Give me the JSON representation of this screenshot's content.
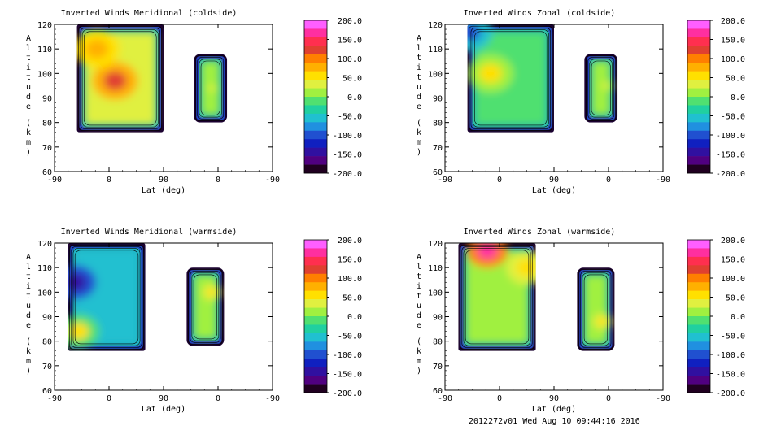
{
  "colorbar": {
    "ticks": [
      "200.0",
      "150.0",
      "100.0",
      "50.0",
      "0.0",
      "-50.0",
      "-100.0",
      "-150.0",
      "-200.0"
    ],
    "colors": [
      "#ff5fff",
      "#ff2fa0",
      "#ff2f4f",
      "#e04030",
      "#ff7f00",
      "#ffb000",
      "#ffe000",
      "#e0f040",
      "#a0f040",
      "#50e070",
      "#20d0a0",
      "#20c0d0",
      "#2090e0",
      "#2050d0",
      "#1020c0",
      "#3010a0",
      "#500080",
      "#200020"
    ]
  },
  "chart_data": [
    {
      "type": "heatmap",
      "id": "mer-cold",
      "title": "Inverted Winds Meridional (coldside)",
      "xlabel": "Lat (deg)",
      "ylabel_chars": [
        "A",
        "l",
        "t",
        "i",
        "t",
        "u",
        "d",
        "e",
        "(",
        "k",
        "m",
        ")"
      ],
      "xticks": [
        "-90",
        "0",
        "90",
        "0",
        "-90"
      ],
      "yticks": [
        "120",
        "110",
        "100",
        "90",
        "80",
        "70",
        "60"
      ],
      "ylim": [
        60,
        120
      ],
      "x_segments": [
        "-90 to 90 (ascending)",
        "90 to -90 (descending)"
      ],
      "blocks": [
        {
          "lat_start": -53,
          "lat_end": 90,
          "alt_bottom": 76,
          "alt_top": 120,
          "mean_wind": 40,
          "extremes": [
            {
              "lat": 10,
              "alt": 97,
              "value": 130
            },
            {
              "lat": -20,
              "alt": 110,
              "value": 80
            }
          ]
        },
        {
          "lat_start": -15,
          "lat_end": 40,
          "alt_bottom": 80,
          "alt_top": 108,
          "mean_wind": 10,
          "extremes": [
            {
              "lat": 10,
              "alt": 94,
              "value": 30
            }
          ]
        }
      ]
    },
    {
      "type": "heatmap",
      "id": "zon-cold",
      "title": "Inverted Winds Zonal (coldside)",
      "xlabel": "Lat (deg)",
      "ylabel_chars": [
        "A",
        "l",
        "t",
        "i",
        "t",
        "u",
        "d",
        "e",
        "(",
        "k",
        "m",
        ")"
      ],
      "xticks": [
        "-90",
        "0",
        "90",
        "0",
        "-90"
      ],
      "yticks": [
        "120",
        "110",
        "100",
        "90",
        "80",
        "70",
        "60"
      ],
      "ylim": [
        60,
        120
      ],
      "x_segments": [
        "-90 to 90 (ascending)",
        "90 to -90 (descending)"
      ],
      "blocks": [
        {
          "lat_start": -53,
          "lat_end": 90,
          "alt_bottom": 76,
          "alt_top": 120,
          "mean_wind": -10,
          "extremes": [
            {
              "lat": -15,
              "alt": 100,
              "value": 50
            },
            {
              "lat": -50,
              "alt": 117,
              "value": -90
            }
          ]
        },
        {
          "lat_start": -15,
          "lat_end": 40,
          "alt_bottom": 80,
          "alt_top": 108,
          "mean_wind": 5,
          "extremes": [
            {
              "lat": 5,
              "alt": 95,
              "value": 30
            }
          ]
        }
      ]
    },
    {
      "type": "heatmap",
      "id": "mer-warm",
      "title": "Inverted Winds Meridional (warmside)",
      "xlabel": "Lat (deg)",
      "ylabel_chars": [
        "A",
        "l",
        "t",
        "i",
        "t",
        "u",
        "d",
        "e",
        "(",
        "k",
        "m",
        ")"
      ],
      "xticks": [
        "-90",
        "0",
        "90",
        "0",
        "-90"
      ],
      "yticks": [
        "120",
        "110",
        "100",
        "90",
        "80",
        "70",
        "60"
      ],
      "ylim": [
        60,
        120
      ],
      "x_segments": [
        "-90 to 90 (ascending)",
        "90 to -90 (descending)"
      ],
      "blocks": [
        {
          "lat_start": -68,
          "lat_end": 60,
          "alt_bottom": 76,
          "alt_top": 120,
          "mean_wind": -60,
          "extremes": [
            {
              "lat": -50,
              "alt": 84,
              "value": 60
            },
            {
              "lat": -55,
              "alt": 104,
              "value": -150
            }
          ]
        },
        {
          "lat_start": -10,
          "lat_end": 52,
          "alt_bottom": 78,
          "alt_top": 110,
          "mean_wind": 10,
          "extremes": [
            {
              "lat": 10,
              "alt": 100,
              "value": 60
            }
          ]
        }
      ]
    },
    {
      "type": "heatmap",
      "id": "zon-warm",
      "title": "Inverted Winds Zonal (warmside)",
      "xlabel": "Lat (deg)",
      "ylabel_chars": [
        "A",
        "l",
        "t",
        "i",
        "t",
        "u",
        "d",
        "e",
        "(",
        "k",
        "m",
        ")"
      ],
      "xticks": [
        "-90",
        "0",
        "90",
        "0",
        "-90"
      ],
      "yticks": [
        "120",
        "110",
        "100",
        "90",
        "80",
        "70",
        "60"
      ],
      "ylim": [
        60,
        120
      ],
      "x_segments": [
        "-90 to 90 (ascending)",
        "90 to -90 (descending)"
      ],
      "blocks": [
        {
          "lat_start": -68,
          "lat_end": 60,
          "alt_bottom": 76,
          "alt_top": 120,
          "mean_wind": 20,
          "extremes": [
            {
              "lat": -20,
              "alt": 117,
              "value": 160
            },
            {
              "lat": 45,
              "alt": 110,
              "value": 60
            }
          ]
        },
        {
          "lat_start": -10,
          "lat_end": 52,
          "alt_bottom": 76,
          "alt_top": 110,
          "mean_wind": 20,
          "extremes": [
            {
              "lat": 10,
              "alt": 88,
              "value": 60
            }
          ]
        }
      ]
    }
  ],
  "footer": "2012272v01 Wed Aug 10 09:44:16 2016"
}
